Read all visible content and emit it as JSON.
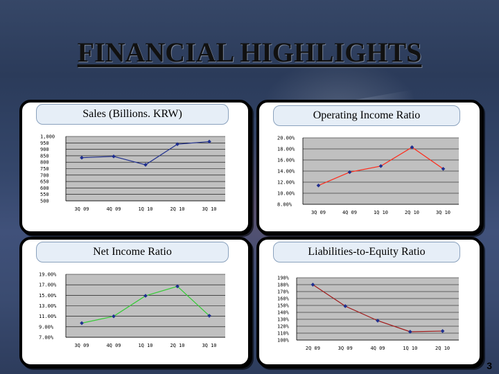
{
  "page": {
    "title": "FINANCIAL HIGHLIGHTS",
    "page_number": "3"
  },
  "chart_data": [
    {
      "type": "line",
      "title": "Sales (Billions. KRW)",
      "categories": [
        "3Q 09",
        "4Q 09",
        "1Q 10",
        "2Q 10",
        "3Q 10"
      ],
      "values": [
        835,
        845,
        780,
        940,
        960
      ],
      "y_ticks": [
        "1,000",
        "950",
        "900",
        "850",
        "800",
        "750",
        "700",
        "650",
        "600",
        "550",
        "500"
      ],
      "ylim": [
        500,
        1000
      ],
      "color": "#1f2f8f",
      "marker_color": "#1f2f8f",
      "grid": true
    },
    {
      "type": "line",
      "title": "Operating Income Ratio",
      "categories": [
        "3Q 09",
        "4Q 09",
        "1Q 10",
        "2Q 10",
        "3Q 10"
      ],
      "values": [
        11.4,
        13.8,
        14.9,
        18.3,
        14.4
      ],
      "y_ticks": [
        "20.00%",
        "18.00%",
        "16.00%",
        "14.00%",
        "12.00%",
        "10.00%",
        "8.00%"
      ],
      "ylim": [
        8,
        20
      ],
      "color": "#ff2a1a",
      "marker_color": "#1f2f8f",
      "grid": true
    },
    {
      "type": "line",
      "title": "Net Income Ratio",
      "categories": [
        "3Q 09",
        "4Q 09",
        "1Q 10",
        "2Q 10",
        "3Q 10"
      ],
      "values": [
        9.7,
        11.0,
        14.9,
        16.7,
        11.1
      ],
      "y_ticks": [
        "19.00%",
        "17.00%",
        "15.00%",
        "13.00%",
        "11.00%",
        "9.00%",
        "7.00%"
      ],
      "ylim": [
        7,
        19
      ],
      "color": "#33cc33",
      "marker_color": "#1f2f8f",
      "grid": true
    },
    {
      "type": "line",
      "title": "Liabilities-to-Equity Ratio",
      "categories": [
        "2Q 09",
        "3Q 09",
        "4Q 09",
        "1Q 10",
        "2Q 10"
      ],
      "values": [
        180,
        149,
        128,
        112,
        113
      ],
      "y_ticks": [
        "190%",
        "180%",
        "170%",
        "160%",
        "150%",
        "140%",
        "130%",
        "120%",
        "110%",
        "100%"
      ],
      "ylim": [
        100,
        190
      ],
      "color": "#a01818",
      "marker_color": "#1f2f8f",
      "grid": true
    }
  ]
}
